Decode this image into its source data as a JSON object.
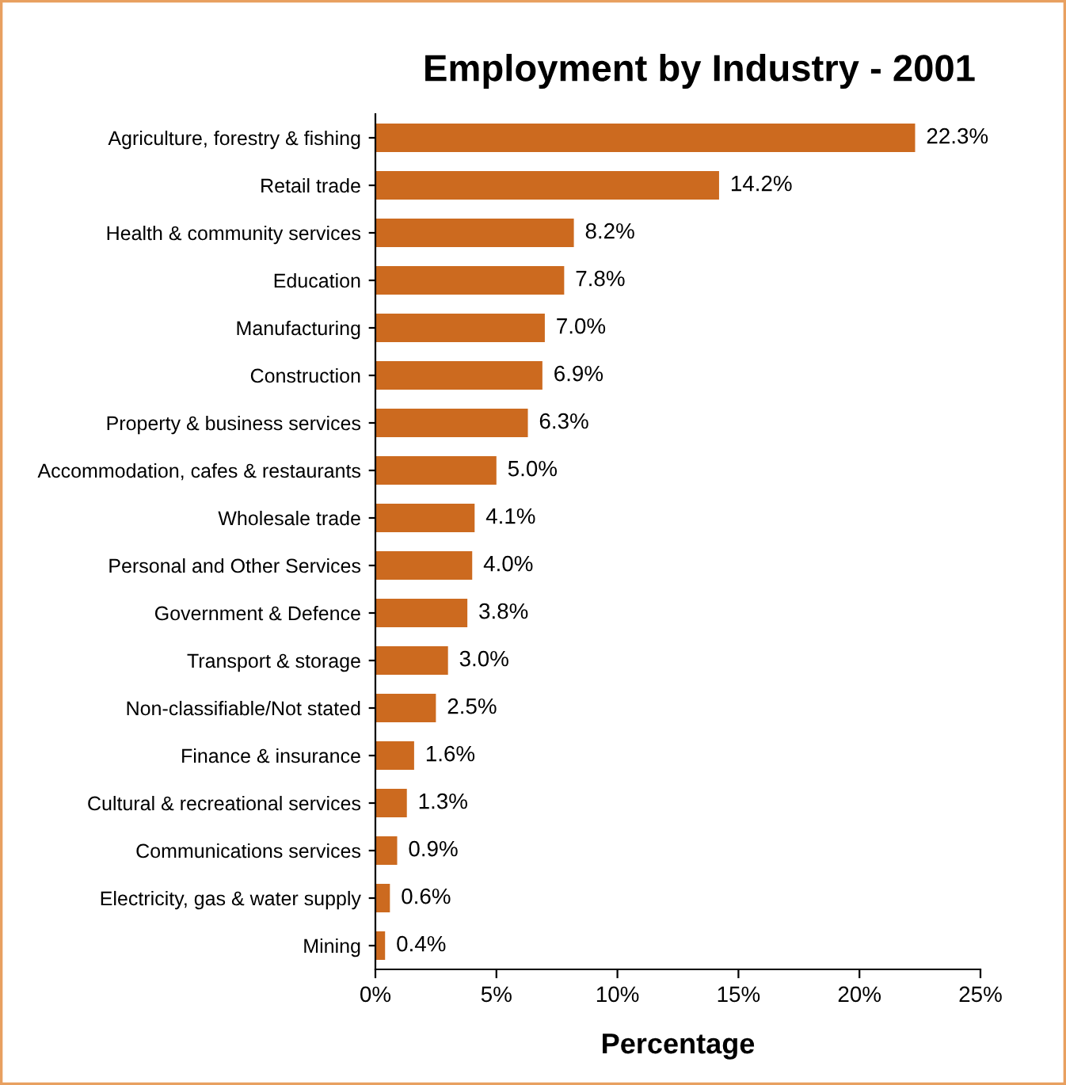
{
  "chart_data": {
    "type": "bar",
    "orientation": "horizontal",
    "title": "Employment by Industry - 2001",
    "xlabel": "Percentage",
    "categories": [
      "Agriculture, forestry & fishing",
      "Retail trade",
      "Health & community services",
      "Education",
      "Manufacturing",
      "Construction",
      "Property & business services",
      "Accommodation, cafes & restaurants",
      "Wholesale trade",
      "Personal and Other Services",
      "Government & Defence",
      "Transport & storage",
      "Non-classifiable/Not stated",
      "Finance & insurance",
      "Cultural & recreational services",
      "Communications services",
      "Electricity, gas & water supply",
      "Mining"
    ],
    "values": [
      22.3,
      14.2,
      8.2,
      7.8,
      7.0,
      6.9,
      6.3,
      5.0,
      4.1,
      4.0,
      3.8,
      3.0,
      2.5,
      1.6,
      1.3,
      0.9,
      0.6,
      0.4
    ],
    "value_labels": [
      "22.3%",
      "14.2%",
      "8.2%",
      "7.8%",
      "7.0%",
      "6.9%",
      "6.3%",
      "5.0%",
      "4.1%",
      "4.0%",
      "3.8%",
      "3.0%",
      "2.5%",
      "1.6%",
      "1.3%",
      "0.9%",
      "0.6%",
      "0.4%"
    ],
    "color": "#cc6a1f",
    "xlim": [
      0,
      25
    ],
    "xticks": [
      {
        "value": 0,
        "label": "0%"
      },
      {
        "value": 5,
        "label": "5%"
      },
      {
        "value": 10,
        "label": "10%"
      },
      {
        "value": 15,
        "label": "15%"
      },
      {
        "value": 20,
        "label": "20%"
      },
      {
        "value": 25,
        "label": "25%"
      }
    ],
    "grid": false,
    "legend": false
  }
}
